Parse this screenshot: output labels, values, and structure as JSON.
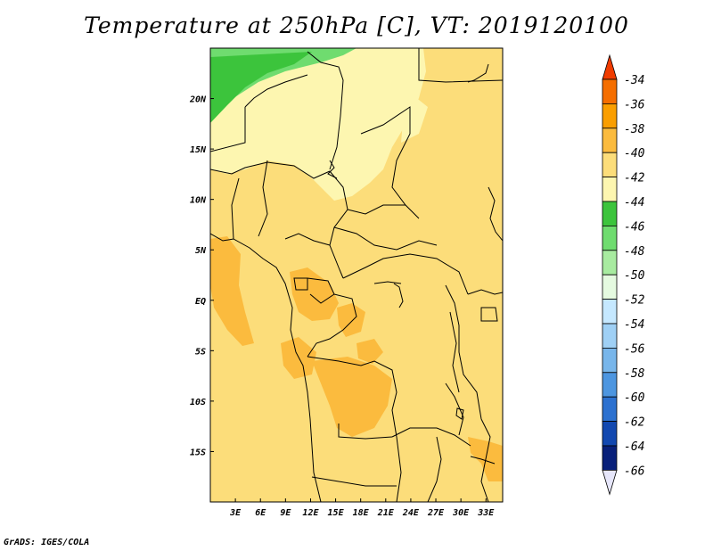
{
  "title": "Temperature at 250hPa [C], VT: 2019120100",
  "credit": "GrADS: IGES/COLA",
  "map": {
    "lon_range": [
      0,
      35
    ],
    "lat_range": [
      -20,
      25
    ],
    "lon_ticks": [
      "3E",
      "6E",
      "9E",
      "12E",
      "15E",
      "18E",
      "21E",
      "24E",
      "27E",
      "30E",
      "33E"
    ],
    "lon_values": [
      3,
      6,
      9,
      12,
      15,
      18,
      21,
      24,
      27,
      30,
      33
    ],
    "lat_ticks": [
      "20N",
      "15N",
      "10N",
      "5N",
      "EQ",
      "5S",
      "10S",
      "15S"
    ],
    "lat_values": [
      20,
      15,
      10,
      5,
      0,
      -5,
      -10,
      -15
    ]
  },
  "colorbar": {
    "labels": [
      "-34",
      "-36",
      "-38",
      "-40",
      "-42",
      "-44",
      "-46",
      "-48",
      "-50",
      "-52",
      "-54",
      "-56",
      "-58",
      "-60",
      "-62",
      "-64",
      "-66"
    ],
    "colors": [
      "#f03c00",
      "#f56e00",
      "#fa9e00",
      "#fbbb3e",
      "#fcdd7a",
      "#fdf6b0",
      "#3cc43c",
      "#6fdc6f",
      "#a8eba0",
      "#e5fae0",
      "#c5e8ff",
      "#9fd0f5",
      "#78b6eb",
      "#4d96e0",
      "#2c71d0",
      "#1248b0",
      "#08207a"
    ],
    "top_color": "#f03c00",
    "bottom_color": "#e6e6fa"
  },
  "colors": {
    "base": "#fcdd7a",
    "warm": "#fbbb3e",
    "cool": "#fdf6b0",
    "green": "#3cc43c",
    "light_green": "#6fdc6f",
    "orange": "#fa9e00"
  }
}
